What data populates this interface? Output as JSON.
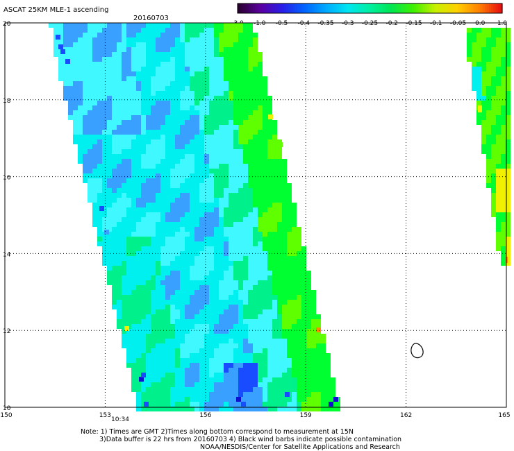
{
  "header": {
    "title": "ASCAT 25KM MLE-1 ascending",
    "date": "20160703"
  },
  "colorbar": {
    "labels": [
      "-3.0",
      "-1.0",
      "-0.5",
      "-0.4",
      "-0.35",
      "-0.3",
      "-0.25",
      "-0.2",
      "-0.15",
      "-0.1",
      "-0.05",
      "0.0",
      "1.0"
    ],
    "colors": [
      "#2a0030",
      "#5a00a0",
      "#2a1ee8",
      "#0064ff",
      "#00aaff",
      "#00e6f0",
      "#00f0a0",
      "#00e650",
      "#40f000",
      "#c8f000",
      "#ffd000",
      "#ff8000",
      "#e81010"
    ]
  },
  "axes": {
    "x_ticks": [
      "150",
      "153",
      "156",
      "159",
      "162",
      "165"
    ],
    "y_ticks": [
      "20",
      "18",
      "16",
      "14",
      "12",
      "10"
    ],
    "time_label": "10:34",
    "time_color": "#cc0000"
  },
  "footer": {
    "line1": "Note: 1) Times are GMT 2)Times along bottom correspond to measurement at 15N",
    "line2": "3)Data buffer is 22 hrs from 20160703 4) Black wind barbs indicate possible contamination",
    "line3": "NOAA/NESDIS/Center for Satellite Applications and Research"
  },
  "swath_colors": {
    "blue": "#1a4cff",
    "light_blue": "#3aa0ff",
    "cyan": "#00f0f0",
    "cyan_light": "#40f8ff",
    "teal_green": "#00f08c",
    "green": "#00ff30",
    "lime": "#60ff00",
    "yellow": "#f0f000",
    "orange": "#ff8c00",
    "navy": "#1010d0"
  }
}
